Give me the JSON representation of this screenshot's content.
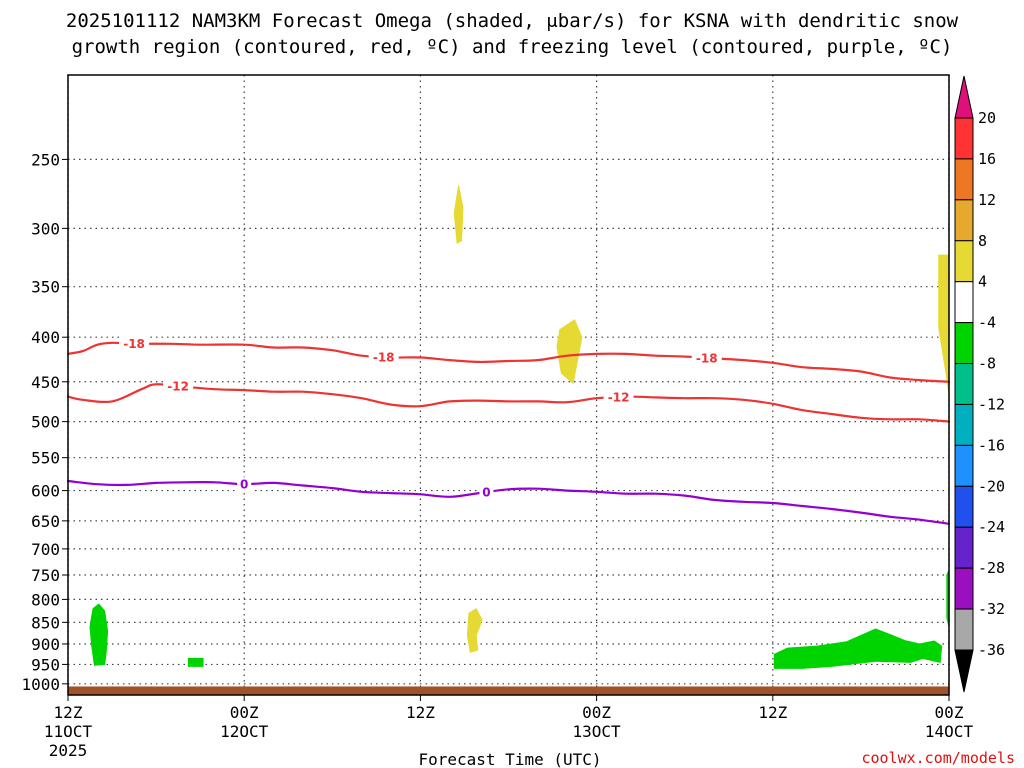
{
  "chart_data": {
    "type": "time-height",
    "title_lines": [
      "2025101112 NAM3KM Forecast Omega (shaded, μbar/s) for KSNA with dendritic snow",
      "growth region (contoured, red, ºC) and freezing level (contoured, purple, ºC)"
    ],
    "xlabel": "Forecast Time (UTC)",
    "credit": "coolwx.com/models",
    "credit_color": "#e01010",
    "xlim_hours": [
      0,
      60
    ],
    "x_ticks": [
      {
        "hour": 0,
        "lines": [
          "12Z",
          "11OCT",
          "2025"
        ]
      },
      {
        "hour": 12,
        "lines": [
          "00Z",
          "12OCT"
        ]
      },
      {
        "hour": 24,
        "lines": [
          "12Z"
        ]
      },
      {
        "hour": 36,
        "lines": [
          "00Z",
          "13OCT"
        ]
      },
      {
        "hour": 48,
        "lines": [
          "12Z"
        ]
      },
      {
        "hour": 60,
        "lines": [
          "00Z",
          "14OCT"
        ]
      }
    ],
    "y_axis_scale": "log-pressure",
    "ylim_hpa": [
      1030,
      200
    ],
    "y_ticks": [
      "250",
      "300",
      "350",
      "400",
      "450",
      "500",
      "550",
      "600",
      "650",
      "700",
      "750",
      "800",
      "850",
      "900",
      "950",
      "1000"
    ],
    "ground_level_hpa": 1007,
    "colors": {
      "ground": "#a0522d",
      "dgz_contour": "#ee3333",
      "freezing_contour": "#9400d3",
      "grid": "#444444"
    },
    "contours": [
      {
        "name": "dgz-minus18",
        "label": "-18",
        "color": "#ee3333",
        "points": [
          [
            0,
            418
          ],
          [
            1,
            415
          ],
          [
            2,
            408
          ],
          [
            3,
            406
          ],
          [
            5,
            407
          ],
          [
            7,
            407
          ],
          [
            9,
            408
          ],
          [
            12,
            408
          ],
          [
            14,
            411
          ],
          [
            16,
            411
          ],
          [
            18,
            414
          ],
          [
            20,
            420
          ],
          [
            22,
            422
          ],
          [
            24,
            422
          ],
          [
            26,
            425
          ],
          [
            28,
            427
          ],
          [
            30,
            426
          ],
          [
            32,
            425
          ],
          [
            34,
            420
          ],
          [
            36,
            418
          ],
          [
            38,
            418
          ],
          [
            40,
            420
          ],
          [
            42,
            421
          ],
          [
            44,
            423
          ],
          [
            46,
            425
          ],
          [
            48,
            428
          ],
          [
            50,
            433
          ],
          [
            52,
            435
          ],
          [
            54,
            438
          ],
          [
            56,
            445
          ],
          [
            58,
            448
          ],
          [
            60,
            450
          ]
        ],
        "labels": [
          {
            "hour": 4.5,
            "value": "-18"
          },
          {
            "hour": 21.5,
            "value": "-18"
          },
          {
            "hour": 43.5,
            "value": "-18"
          }
        ]
      },
      {
        "name": "dgz-minus12",
        "label": "-12",
        "color": "#ee3333",
        "points": [
          [
            0,
            468
          ],
          [
            1,
            472
          ],
          [
            3,
            474
          ],
          [
            5,
            459
          ],
          [
            6,
            453
          ],
          [
            8,
            456
          ],
          [
            10,
            459
          ],
          [
            12,
            460
          ],
          [
            14,
            462
          ],
          [
            16,
            462
          ],
          [
            18,
            465
          ],
          [
            20,
            470
          ],
          [
            22,
            478
          ],
          [
            24,
            480
          ],
          [
            26,
            474
          ],
          [
            28,
            473
          ],
          [
            30,
            474
          ],
          [
            32,
            474
          ],
          [
            34,
            475
          ],
          [
            36,
            470
          ],
          [
            38,
            468
          ],
          [
            40,
            469
          ],
          [
            42,
            470
          ],
          [
            44,
            470
          ],
          [
            46,
            472
          ],
          [
            48,
            477
          ],
          [
            50,
            485
          ],
          [
            52,
            490
          ],
          [
            54,
            495
          ],
          [
            56,
            497
          ],
          [
            58,
            497
          ],
          [
            60,
            500
          ]
        ],
        "labels": [
          {
            "hour": 7.5,
            "value": "-12"
          },
          {
            "hour": 37.5,
            "value": "-12"
          }
        ]
      },
      {
        "name": "freezing-level",
        "label": "0",
        "color": "#9400d3",
        "points": [
          [
            0,
            585
          ],
          [
            2,
            590
          ],
          [
            4,
            591
          ],
          [
            6,
            588
          ],
          [
            8,
            587
          ],
          [
            10,
            587
          ],
          [
            12,
            590
          ],
          [
            14,
            588
          ],
          [
            16,
            592
          ],
          [
            18,
            596
          ],
          [
            20,
            602
          ],
          [
            22,
            604
          ],
          [
            24,
            606
          ],
          [
            26,
            610
          ],
          [
            28,
            604
          ],
          [
            30,
            598
          ],
          [
            32,
            597
          ],
          [
            34,
            600
          ],
          [
            36,
            602
          ],
          [
            38,
            605
          ],
          [
            40,
            605
          ],
          [
            42,
            608
          ],
          [
            44,
            615
          ],
          [
            46,
            618
          ],
          [
            48,
            620
          ],
          [
            50,
            625
          ],
          [
            52,
            630
          ],
          [
            54,
            636
          ],
          [
            56,
            643
          ],
          [
            58,
            648
          ],
          [
            60,
            655
          ]
        ],
        "labels": [
          {
            "hour": 12,
            "value": "0"
          },
          {
            "hour": 28.5,
            "value": "0"
          }
        ]
      }
    ],
    "omega_regions": [
      {
        "name": "ascent-column-early",
        "color": "#00d400",
        "range": "-8 to -4",
        "points": [
          [
            1.7,
            820
          ],
          [
            2.1,
            810
          ],
          [
            2.5,
            825
          ],
          [
            2.7,
            870
          ],
          [
            2.6,
            920
          ],
          [
            2.5,
            950
          ],
          [
            1.8,
            952
          ],
          [
            1.6,
            900
          ],
          [
            1.5,
            860
          ]
        ]
      },
      {
        "name": "ascent-blob-small",
        "color": "#00d400",
        "range": "-8 to -4",
        "points": [
          [
            8.2,
            935
          ],
          [
            9.2,
            935
          ],
          [
            9.2,
            955
          ],
          [
            8.2,
            955
          ]
        ]
      },
      {
        "name": "ascent-region-late",
        "color": "#00d400",
        "range": "-8 to -4",
        "points": [
          [
            48.1,
            925
          ],
          [
            49,
            910
          ],
          [
            51,
            905
          ],
          [
            53,
            895
          ],
          [
            54,
            880
          ],
          [
            55,
            865
          ],
          [
            56,
            878
          ],
          [
            57,
            892
          ],
          [
            58,
            900
          ],
          [
            59,
            893
          ],
          [
            59.5,
            905
          ],
          [
            59.4,
            945
          ],
          [
            58.2,
            935
          ],
          [
            57.4,
            945
          ],
          [
            55,
            942
          ],
          [
            52,
            955
          ],
          [
            50,
            960
          ],
          [
            48.1,
            960
          ]
        ]
      },
      {
        "name": "ascent-edge-late",
        "color": "#00d400",
        "range": "-8 to -4",
        "points": [
          [
            59.85,
            750
          ],
          [
            60,
            740
          ],
          [
            60,
            860
          ],
          [
            59.85,
            840
          ]
        ]
      },
      {
        "name": "descent-column-upper",
        "color": "#e6d933",
        "range": "4 to 8",
        "points": [
          [
            26.6,
            268
          ],
          [
            26.9,
            284
          ],
          [
            26.8,
            310
          ],
          [
            26.5,
            312
          ],
          [
            26.3,
            288
          ]
        ]
      },
      {
        "name": "descent-column-mid",
        "color": "#e6d933",
        "range": "4 to 8",
        "points": [
          [
            33.5,
            392
          ],
          [
            34.5,
            382
          ],
          [
            35,
            400
          ],
          [
            34.4,
            452
          ],
          [
            33.6,
            440
          ],
          [
            33.3,
            410
          ]
        ]
      },
      {
        "name": "descent-column-lower",
        "color": "#e6d933",
        "range": "4 to 8",
        "points": [
          [
            27.3,
            830
          ],
          [
            27.8,
            820
          ],
          [
            28.2,
            845
          ],
          [
            27.8,
            880
          ],
          [
            27.9,
            915
          ],
          [
            27.4,
            920
          ],
          [
            27.2,
            880
          ]
        ]
      },
      {
        "name": "descent-column-edge",
        "color": "#e6d933",
        "range": "4 to 8",
        "points": [
          [
            59.3,
            322
          ],
          [
            60,
            322
          ],
          [
            60,
            465
          ],
          [
            59.7,
            430
          ],
          [
            59.3,
            390
          ]
        ]
      }
    ],
    "colorbar": {
      "boundaries": [
        "20",
        "16",
        "12",
        "8",
        "4",
        "-4",
        "-8",
        "-12",
        "-16",
        "-20",
        "-24",
        "-28",
        "-32",
        "-36"
      ],
      "colors": [
        "#ff3333",
        "#ee7722",
        "#e6a82d",
        "#e6d933",
        "#ffffff",
        "#00d400",
        "#00c08a",
        "#00b0c0",
        "#1e90ff",
        "#2050ee",
        "#6622cc",
        "#9a10c0",
        "#a8a8a8"
      ],
      "top_arrow_color": "#e0107a",
      "bottom_arrow_color": "#000000"
    }
  }
}
